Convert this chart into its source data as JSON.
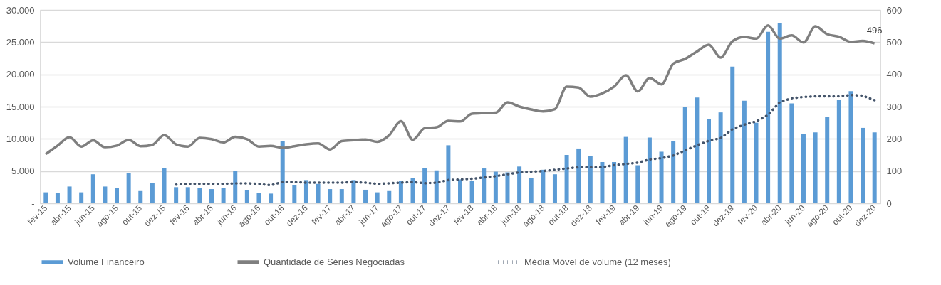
{
  "chart_data": {
    "type": "bar",
    "categories": [
      "fev-15",
      null,
      "abr-15",
      null,
      "jun-15",
      null,
      "ago-15",
      null,
      "out-15",
      null,
      "dez-15",
      null,
      "fev-16",
      null,
      "abr-16",
      null,
      "jun-16",
      null,
      "ago-16",
      null,
      "out-16",
      null,
      "dez-16",
      null,
      "fev-17",
      null,
      "abr-17",
      null,
      "jun-17",
      null,
      "ago-17",
      null,
      "out-17",
      null,
      "dez-17",
      null,
      "fev-18",
      null,
      "abr-18",
      null,
      "jun-18",
      null,
      "ago-18",
      null,
      "out-18",
      null,
      "dez-18",
      null,
      "fev-19",
      null,
      "abr-19",
      null,
      "jun-19",
      null,
      "ago-19",
      null,
      "out-19",
      null,
      "dez-19",
      null,
      "fev-20",
      null,
      "abr-20",
      null,
      "jun-20",
      null,
      "ago-20",
      null,
      "out-20",
      null,
      "dez-20"
    ],
    "series": [
      {
        "name": "Volume Financeiro",
        "color": "#5b9bd5",
        "values": [
          1700,
          1600,
          2600,
          1700,
          4500,
          2600,
          2400,
          4700,
          1900,
          3200,
          5500,
          2500,
          2500,
          2400,
          2200,
          2400,
          5000,
          2000,
          1600,
          1500,
          9600,
          2800,
          3600,
          3000,
          2200,
          2200,
          3600,
          2100,
          1700,
          1900,
          3500,
          3900,
          5500,
          5100,
          9000,
          3700,
          3500,
          5400,
          4900,
          4800,
          5700,
          3900,
          5200,
          4500,
          7500,
          8500,
          7300,
          6400,
          6400,
          10300,
          5900,
          10200,
          8000,
          9600,
          14900,
          16400,
          13100,
          14100,
          21200,
          15900,
          12500,
          26600,
          28000,
          15500,
          10800,
          11000,
          13400,
          16100,
          17400,
          11700,
          11000
        ]
      },
      {
        "name": "Quantidade de Séries Negociadas",
        "type": "line",
        "axis": "y2",
        "color": "#7f7f7f",
        "line_style": "solid",
        "values": [
          153,
          179,
          205,
          176,
          195,
          174,
          179,
          197,
          177,
          181,
          212,
          183,
          176,
          203,
          199,
          189,
          206,
          199,
          176,
          178,
          172,
          177,
          183,
          186,
          167,
          193,
          196,
          198,
          191,
          211,
          255,
          197,
          233,
          236,
          256,
          254,
          278,
          280,
          281,
          313,
          300,
          291,
          285,
          292,
          362,
          359,
          331,
          341,
          362,
          397,
          347,
          389,
          369,
          433,
          448,
          471,
          492,
          452,
          503,
          516,
          511,
          552,
          511,
          521,
          499,
          549,
          525,
          517,
          501,
          504,
          496
        ],
        "value_labels": [
          null,
          null,
          null,
          null,
          null,
          null,
          null,
          null,
          null,
          null,
          null,
          null,
          null,
          null,
          null,
          null,
          null,
          null,
          null,
          null,
          null,
          null,
          null,
          null,
          null,
          null,
          null,
          null,
          null,
          null,
          null,
          null,
          null,
          null,
          null,
          null,
          null,
          null,
          null,
          null,
          null,
          null,
          null,
          null,
          null,
          null,
          null,
          null,
          null,
          null,
          null,
          null,
          null,
          null,
          null,
          null,
          null,
          null,
          null,
          null,
          null,
          null,
          null,
          null,
          null,
          null,
          null,
          null,
          null,
          null,
          "496"
        ]
      },
      {
        "name": "Média Móvel de volume (12 meses)",
        "type": "line",
        "color": "#44546a",
        "line_style": "dotted",
        "values": [
          null,
          null,
          null,
          null,
          null,
          null,
          null,
          null,
          null,
          null,
          null,
          2900,
          3000,
          3000,
          3000,
          3000,
          3100,
          3100,
          3000,
          2800,
          3300,
          3300,
          3200,
          3200,
          3200,
          3200,
          3300,
          3200,
          3000,
          3100,
          3200,
          3300,
          3100,
          3200,
          3600,
          3700,
          3800,
          4000,
          4200,
          4500,
          4800,
          4900,
          5000,
          5200,
          5400,
          5600,
          5600,
          5600,
          5900,
          6100,
          6300,
          6800,
          7000,
          7400,
          8200,
          9000,
          9700,
          10100,
          11500,
          12200,
          12700,
          13700,
          15700,
          16300,
          16500,
          16600,
          16600,
          16600,
          16800,
          16700,
          16000
        ]
      }
    ],
    "ylim": [
      0,
      30000
    ],
    "yticks": [
      {
        "value": 0,
        "label": "-"
      },
      {
        "value": 5000,
        "label": "5.000"
      },
      {
        "value": 10000,
        "label": "10.000"
      },
      {
        "value": 15000,
        "label": "15.000"
      },
      {
        "value": 20000,
        "label": "20.000"
      },
      {
        "value": 25000,
        "label": "25.000"
      },
      {
        "value": 30000,
        "label": "30.000"
      }
    ],
    "y2lim": [
      0,
      600
    ],
    "y2ticks": [
      0,
      100,
      200,
      300,
      400,
      500,
      600
    ],
    "grid": "y",
    "legend": "bottom"
  }
}
